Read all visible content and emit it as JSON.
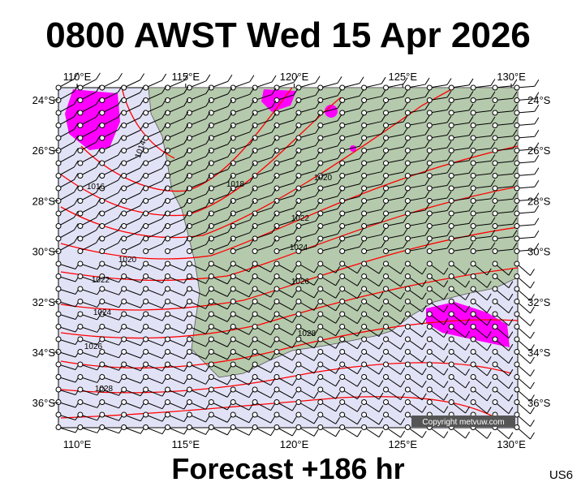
{
  "header": {
    "title": "0800 AWST Wed 15 Apr 2026"
  },
  "map": {
    "lon_ticks": [
      {
        "value": 110,
        "label": "110°E"
      },
      {
        "value": 115,
        "label": "115°E"
      },
      {
        "value": 120,
        "label": "120°E"
      },
      {
        "value": 125,
        "label": "125°E"
      },
      {
        "value": 130,
        "label": "130°E"
      }
    ],
    "lat_ticks": [
      {
        "value": 24,
        "label": "24°S"
      },
      {
        "value": 26,
        "label": "26°S"
      },
      {
        "value": 28,
        "label": "28°S"
      },
      {
        "value": 30,
        "label": "30°S"
      },
      {
        "value": 32,
        "label": "32°S"
      },
      {
        "value": 34,
        "label": "34°S"
      },
      {
        "value": 36,
        "label": "36°S"
      }
    ],
    "isobar_labels": [
      "1014",
      "1016",
      "1018",
      "1020",
      "1022",
      "1024",
      "1026",
      "1028",
      "1020",
      "1022",
      "1024",
      "1026",
      "1028"
    ],
    "copyright": "Copyright metvuw.com"
  },
  "footer": {
    "forecast": "Forecast +186 hr",
    "code": "US6"
  }
}
